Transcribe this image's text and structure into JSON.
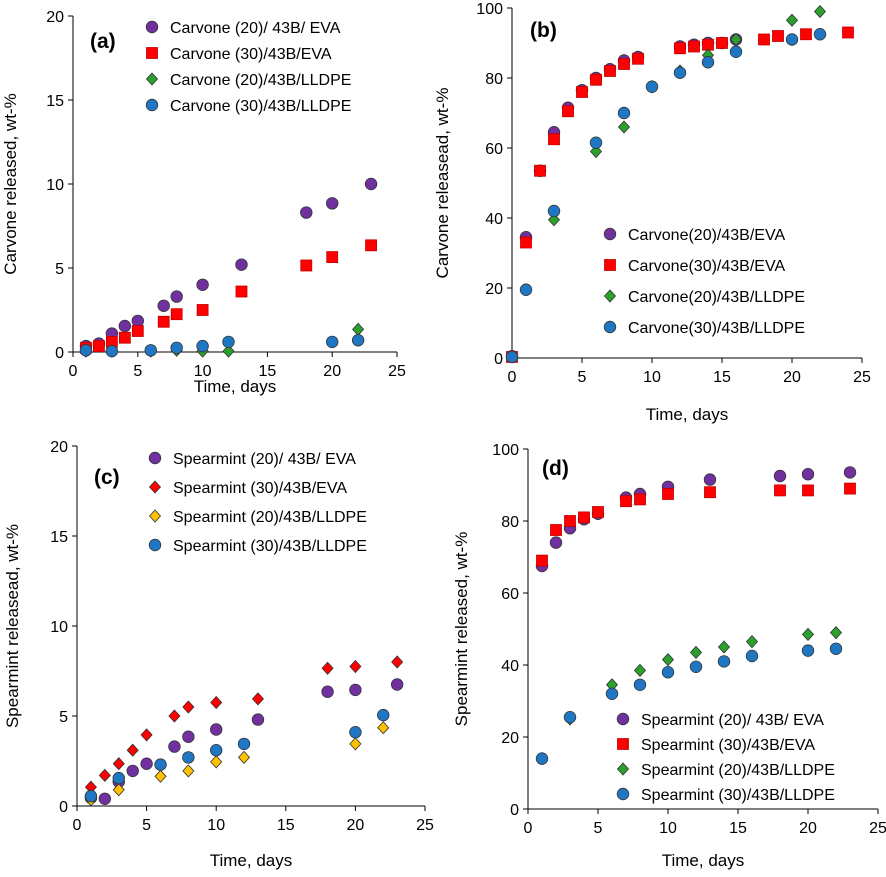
{
  "colors": {
    "purple": "#7030a0",
    "red": "#ff0000",
    "green": "#2ca02c",
    "blue": "#1f77c4",
    "orange": "#ffc000",
    "marker_edge": "#333333"
  },
  "chart_data": [
    {
      "type": "scatter",
      "panel": "(a)",
      "xlabel": "Time, days",
      "ylabel": "Carvone released, wt-%",
      "xlim": [
        0,
        25
      ],
      "ylim": [
        0,
        20
      ],
      "xticks": [
        0,
        5,
        10,
        15,
        20,
        25
      ],
      "yticks": [
        0,
        5,
        10,
        15,
        20
      ],
      "legend_position": "top-right",
      "series": [
        {
          "name": "Carvone (20)/ 43B/ EVA",
          "marker": "circle",
          "color": "purple",
          "x": [
            1,
            2,
            3,
            4,
            5,
            7,
            8,
            10,
            13,
            18,
            20,
            23
          ],
          "y": [
            0.35,
            0.5,
            1.1,
            1.55,
            1.85,
            2.75,
            3.3,
            4.0,
            5.2,
            8.3,
            8.85,
            10.0
          ]
        },
        {
          "name": "Carvone (30)/43B/EVA",
          "marker": "square",
          "color": "red",
          "x": [
            1,
            2,
            3,
            4,
            5,
            7,
            8,
            10,
            13,
            18,
            20,
            23
          ],
          "y": [
            0.25,
            0.35,
            0.6,
            0.85,
            1.25,
            1.8,
            2.25,
            2.5,
            3.6,
            5.15,
            5.65,
            6.35
          ]
        },
        {
          "name": "Carvone (20)/43B/LLDPE",
          "marker": "diamond",
          "color": "green",
          "x": [
            1,
            3,
            6,
            8,
            10,
            12,
            22
          ],
          "y": [
            0.05,
            0.05,
            0.05,
            0.1,
            0.05,
            0.05,
            1.35
          ]
        },
        {
          "name": "Carvone (30)/43B/LLDPE",
          "marker": "circle",
          "color": "blue",
          "x": [
            1,
            3,
            6,
            8,
            10,
            12,
            20,
            22
          ],
          "y": [
            0.1,
            0.05,
            0.1,
            0.25,
            0.35,
            0.6,
            0.6,
            0.7
          ]
        }
      ]
    },
    {
      "type": "scatter",
      "panel": "(b)",
      "xlabel": "Time, days",
      "ylabel": "Carvone releasead, wt-%",
      "xlim": [
        0,
        25
      ],
      "ylim": [
        0,
        100
      ],
      "xticks": [
        0,
        5,
        10,
        15,
        20,
        25
      ],
      "yticks": [
        0,
        20,
        40,
        60,
        80,
        100
      ],
      "legend_position": "bottom-right",
      "series": [
        {
          "name": "Carvone(20)/43B/EVA",
          "marker": "circle",
          "color": "purple",
          "x": [
            0,
            1,
            2,
            3,
            4,
            5,
            6,
            7,
            8,
            9,
            12,
            13,
            14,
            15,
            16
          ],
          "y": [
            0.5,
            34.5,
            53.5,
            64.5,
            71.5,
            76.5,
            80,
            82.5,
            85,
            86,
            89,
            89.5,
            90,
            90,
            91
          ]
        },
        {
          "name": "Carvone(30)/43B/EVA",
          "marker": "square",
          "color": "red",
          "x": [
            0,
            1,
            2,
            3,
            4,
            5,
            6,
            7,
            8,
            9,
            12,
            13,
            14,
            15,
            18,
            19,
            21,
            24
          ],
          "y": [
            0.3,
            33,
            53.5,
            62.5,
            70.5,
            76,
            79.5,
            82,
            84,
            85.5,
            88.5,
            89,
            89.5,
            90,
            91,
            92,
            92.5,
            93
          ]
        },
        {
          "name": "Carvone(20)/43B/LLDPE",
          "marker": "diamond",
          "color": "green",
          "x": [
            0,
            1,
            3,
            6,
            8,
            10,
            12,
            14,
            16,
            20,
            22
          ],
          "y": [
            0.3,
            19.5,
            39.5,
            59,
            66,
            77.5,
            82,
            86.5,
            91,
            96.5,
            99
          ]
        },
        {
          "name": "Carvone(30)/43B/LLDPE",
          "marker": "circle",
          "color": "blue",
          "x": [
            0,
            1,
            3,
            6,
            8,
            10,
            12,
            14,
            16,
            20,
            22
          ],
          "y": [
            0.3,
            19.5,
            42,
            61.5,
            70,
            77.5,
            81.5,
            84.5,
            87.5,
            91,
            92.5
          ]
        }
      ]
    },
    {
      "type": "scatter",
      "panel": "(c)",
      "xlabel": "Time, days",
      "ylabel": "Spearmint releasead, wt-%",
      "xlim": [
        0,
        25
      ],
      "ylim": [
        0,
        20
      ],
      "xticks": [
        0,
        5,
        10,
        15,
        20,
        25
      ],
      "yticks": [
        0,
        5,
        10,
        15,
        20
      ],
      "legend_position": "top-right",
      "series": [
        {
          "name": "Spearmint (20)/ 43B/ EVA",
          "marker": "circle",
          "color": "purple",
          "x": [
            1,
            2,
            3,
            4,
            5,
            7,
            8,
            10,
            13,
            18,
            20,
            23
          ],
          "y": [
            0.45,
            0.4,
            1.35,
            1.95,
            2.35,
            3.3,
            3.85,
            4.25,
            4.8,
            6.35,
            6.45,
            6.75
          ]
        },
        {
          "name": "Spearmint (30)/43B/EVA",
          "marker": "diamond",
          "color": "red",
          "x": [
            1,
            2,
            3,
            4,
            5,
            7,
            8,
            10,
            13,
            18,
            20,
            23
          ],
          "y": [
            1.05,
            1.7,
            2.35,
            3.1,
            3.95,
            5.0,
            5.5,
            5.75,
            5.95,
            7.65,
            7.75,
            8.0
          ]
        },
        {
          "name": "Spearmint (20)/43B/LLDPE",
          "marker": "diamond",
          "color": "orange",
          "x": [
            1,
            3,
            6,
            8,
            10,
            12,
            20,
            22
          ],
          "y": [
            0.35,
            0.9,
            1.65,
            1.95,
            2.45,
            2.7,
            3.45,
            4.35
          ]
        },
        {
          "name": "Spearmint (30)/43B/LLDPE",
          "marker": "circle",
          "color": "blue",
          "x": [
            1,
            3,
            6,
            8,
            10,
            12,
            20,
            22
          ],
          "y": [
            0.55,
            1.55,
            2.3,
            2.7,
            3.1,
            3.45,
            4.1,
            5.05
          ]
        }
      ]
    },
    {
      "type": "scatter",
      "panel": "(d)",
      "xlabel": "Time, days",
      "ylabel": "Spearmint released,  wt-%",
      "xlim": [
        0,
        25
      ],
      "ylim": [
        0,
        100
      ],
      "xticks": [
        0,
        5,
        10,
        15,
        20,
        25
      ],
      "yticks": [
        0,
        20,
        40,
        60,
        80,
        100
      ],
      "legend_position": "bottom-right",
      "series": [
        {
          "name": "Spearmint (20)/ 43B/ EVA",
          "marker": "circle",
          "color": "purple",
          "x": [
            1,
            2,
            3,
            4,
            5,
            7,
            8,
            10,
            13,
            18,
            20,
            23
          ],
          "y": [
            67.5,
            74,
            78,
            80.5,
            82,
            86.5,
            87.5,
            89.5,
            91.5,
            92.5,
            93,
            93.5
          ]
        },
        {
          "name": "Spearmint (30)/43B/EVA",
          "marker": "square",
          "color": "red",
          "x": [
            1,
            2,
            3,
            4,
            5,
            7,
            8,
            10,
            13,
            18,
            20,
            23
          ],
          "y": [
            69,
            77.5,
            80,
            81,
            82.5,
            85.5,
            86,
            87.5,
            88,
            88.5,
            88.5,
            89
          ]
        },
        {
          "name": "Spearmint (20)/43B/LLDPE",
          "marker": "diamond",
          "color": "green",
          "x": [
            1,
            3,
            6,
            8,
            10,
            12,
            14,
            16,
            20,
            22
          ],
          "y": [
            14,
            25,
            34.5,
            38.5,
            41.5,
            43.5,
            45,
            46.5,
            48.5,
            49
          ]
        },
        {
          "name": "Spearmint (30)/43B/LLDPE",
          "marker": "circle",
          "color": "blue",
          "x": [
            1,
            3,
            6,
            8,
            10,
            12,
            14,
            16,
            20,
            22
          ],
          "y": [
            14,
            25.5,
            32,
            34.5,
            38,
            39.5,
            41,
            42.5,
            44,
            44.5
          ]
        }
      ]
    }
  ]
}
